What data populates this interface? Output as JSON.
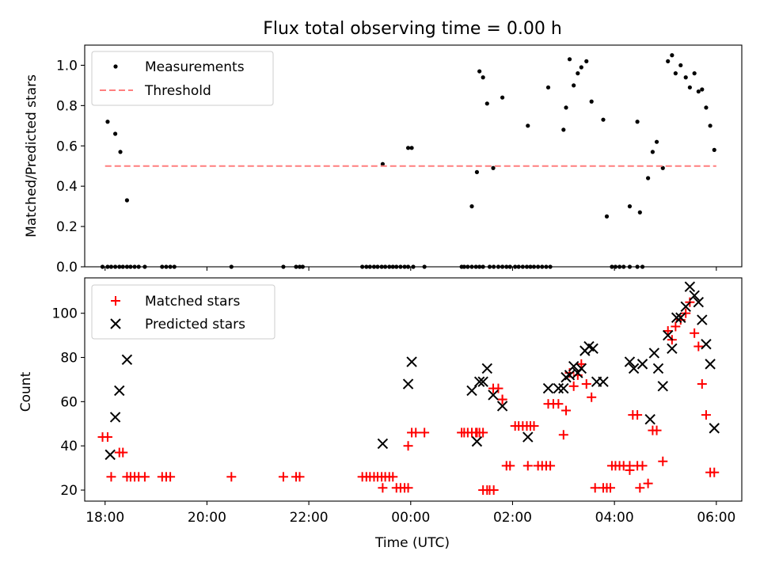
{
  "chart_data": [
    {
      "type": "scatter",
      "title": "Flux total observing time = 0.00 h",
      "xlabel": "",
      "ylabel": "Matched/Predicted stars",
      "xlim": [
        -0.4,
        12.5
      ],
      "ylim": [
        0,
        1.1
      ],
      "yticks": [
        0.0,
        0.2,
        0.4,
        0.6,
        0.8,
        1.0
      ],
      "ytick_labels": [
        "0.0",
        "0.2",
        "0.4",
        "0.6",
        "0.8",
        "1.0"
      ],
      "xtick_positions": [
        0,
        2,
        4,
        6,
        8,
        10,
        12
      ],
      "show_xtick_labels": false,
      "legend_position": "top-left",
      "grid": false,
      "series": [
        {
          "name": "Measurements",
          "marker": "dot",
          "color": "#000000",
          "x": [
            -0.05,
            0.05,
            0.12,
            0.2,
            0.28,
            0.35,
            0.43,
            0.5,
            0.58,
            0.66,
            0.78,
            1.12,
            1.2,
            1.28,
            1.36,
            2.48,
            3.5,
            3.75,
            3.82,
            3.88,
            5.05,
            5.13,
            5.2,
            5.28,
            5.35,
            5.43,
            5.5,
            5.58,
            5.65,
            5.72,
            5.8,
            5.88,
            5.95,
            6.05,
            6.27,
            7.0,
            7.05,
            7.12,
            7.2,
            7.28,
            7.35,
            7.42,
            7.55,
            7.63,
            7.72,
            7.8,
            7.88,
            7.95,
            8.05,
            8.12,
            8.2,
            8.28,
            8.35,
            8.42,
            8.5,
            8.58,
            8.66,
            8.74,
            9.95,
            10.02,
            10.1,
            10.18,
            10.3,
            10.45,
            10.55,
            0.05,
            0.2,
            0.3,
            0.43,
            5.45,
            5.95,
            6.02,
            7.2,
            7.3,
            7.35,
            7.42,
            7.5,
            7.62,
            7.8,
            8.3,
            8.7,
            9.0,
            9.05,
            9.12,
            9.2,
            9.28,
            9.35,
            9.45,
            9.55,
            9.78,
            9.85,
            10.3,
            10.45,
            10.5,
            10.66,
            10.75,
            10.83,
            10.95,
            11.05,
            11.13,
            11.2,
            11.3,
            11.4,
            11.48,
            11.57,
            11.65,
            11.72,
            11.8,
            11.88,
            11.96
          ],
          "y": [
            0,
            0,
            0,
            0,
            0,
            0,
            0,
            0,
            0,
            0,
            0,
            0,
            0,
            0,
            0,
            0,
            0,
            0,
            0,
            0,
            0,
            0,
            0,
            0,
            0,
            0,
            0,
            0,
            0,
            0,
            0,
            0,
            0,
            0,
            0,
            0,
            0,
            0,
            0,
            0,
            0,
            0,
            0,
            0,
            0,
            0,
            0,
            0,
            0,
            0,
            0,
            0,
            0,
            0,
            0,
            0,
            0,
            0,
            0,
            0,
            0,
            0,
            0,
            0,
            0,
            0.72,
            0.66,
            0.57,
            0.33,
            0.51,
            0.59,
            0.59,
            0.3,
            0.47,
            0.97,
            0.94,
            0.81,
            0.49,
            0.84,
            0.7,
            0.89,
            0.68,
            0.79,
            1.03,
            0.9,
            0.96,
            0.99,
            1.02,
            0.82,
            0.73,
            0.25,
            0.3,
            0.72,
            0.27,
            0.44,
            0.57,
            0.62,
            0.49,
            1.02,
            1.05,
            0.96,
            1.0,
            0.94,
            0.89,
            0.96,
            0.87,
            0.88,
            0.79,
            0.7,
            0.58
          ]
        },
        {
          "name": "Threshold",
          "marker": "dashed-line",
          "color": "#ff7f7f",
          "x": [
            0,
            12
          ],
          "y": [
            0.5,
            0.5
          ]
        }
      ]
    },
    {
      "type": "scatter",
      "title": "",
      "xlabel": "Time (UTC)",
      "ylabel": "Count",
      "xlim": [
        -0.4,
        12.5
      ],
      "ylim": [
        15,
        116
      ],
      "yticks": [
        20,
        40,
        60,
        80,
        100
      ],
      "ytick_labels": [
        "20",
        "40",
        "60",
        "80",
        "100"
      ],
      "xtick_positions": [
        0,
        2,
        4,
        6,
        8,
        10,
        12
      ],
      "xtick_labels": [
        "18:00",
        "20:00",
        "22:00",
        "00:00",
        "02:00",
        "04:00",
        "06:00"
      ],
      "legend_position": "top-left",
      "grid": false,
      "series": [
        {
          "name": "Matched stars",
          "marker": "plus",
          "color": "#ff0000",
          "x": [
            -0.05,
            0.05,
            0.12,
            0.28,
            0.35,
            0.43,
            0.5,
            0.58,
            0.66,
            0.78,
            1.12,
            1.2,
            1.28,
            2.48,
            3.5,
            3.75,
            3.82,
            5.05,
            5.13,
            5.2,
            5.28,
            5.35,
            5.43,
            5.5,
            5.58,
            5.65,
            5.72,
            5.8,
            5.88,
            5.95,
            7.0,
            7.05,
            7.12,
            7.2,
            7.28,
            7.42,
            7.55,
            7.63,
            7.72,
            7.8,
            7.88,
            7.95,
            8.05,
            8.12,
            8.2,
            8.28,
            8.35,
            8.42,
            8.5,
            8.58,
            8.66,
            8.74,
            9.95,
            10.02,
            10.1,
            10.18,
            10.3,
            10.45,
            10.55,
            5.45,
            5.95,
            6.02,
            6.1,
            6.27,
            7.2,
            7.3,
            7.35,
            7.42,
            7.5,
            7.62,
            7.8,
            8.3,
            8.7,
            8.8,
            8.9,
            9.0,
            9.05,
            9.12,
            9.2,
            9.28,
            9.35,
            9.45,
            9.55,
            9.62,
            9.78,
            9.85,
            9.92,
            10.3,
            10.36,
            10.45,
            10.5,
            10.66,
            10.75,
            10.83,
            10.95,
            11.05,
            11.13,
            11.2,
            11.3,
            11.4,
            11.48,
            11.57,
            11.65,
            11.72,
            11.8,
            11.88,
            11.96
          ],
          "y": [
            44,
            44,
            26,
            37,
            37,
            26,
            26,
            26,
            26,
            26,
            26,
            26,
            26,
            26,
            26,
            26,
            26,
            26,
            26,
            26,
            26,
            26,
            26,
            26,
            26,
            26,
            21,
            21,
            21,
            21,
            46,
            46,
            46,
            46,
            46,
            46,
            20,
            20,
            66,
            61,
            31,
            31,
            49,
            49,
            49,
            49,
            49,
            49,
            31,
            31,
            31,
            31,
            31,
            31,
            31,
            31,
            31,
            31,
            31,
            21,
            40,
            46,
            46,
            46,
            46,
            46,
            46,
            20,
            20,
            66,
            61,
            31,
            59,
            59,
            59,
            45,
            56,
            73,
            67,
            72,
            77,
            68,
            62,
            21,
            21,
            21,
            21,
            29,
            54,
            54,
            21,
            23,
            47,
            47,
            33,
            92,
            88,
            94,
            97,
            100,
            105,
            91,
            85,
            68,
            54,
            28,
            28
          ]
        },
        {
          "name": "Predicted stars",
          "marker": "x",
          "color": "#000000",
          "x": [
            0.1,
            0.2,
            0.28,
            0.43,
            5.45,
            5.95,
            6.02,
            7.2,
            7.3,
            7.35,
            7.42,
            7.5,
            7.62,
            7.8,
            8.3,
            8.7,
            8.9,
            9.0,
            9.05,
            9.12,
            9.2,
            9.28,
            9.35,
            9.42,
            9.5,
            9.58,
            9.65,
            9.78,
            10.3,
            10.38,
            10.55,
            10.7,
            10.78,
            10.86,
            10.95,
            11.05,
            11.13,
            11.22,
            11.3,
            11.4,
            11.48,
            11.57,
            11.65,
            11.72,
            11.8,
            11.88,
            11.96
          ],
          "y": [
            36,
            53,
            65,
            79,
            41,
            68,
            78,
            65,
            42,
            69,
            69,
            75,
            63,
            58,
            44,
            66,
            66,
            66,
            71,
            72,
            76,
            73,
            75,
            83,
            85,
            84,
            69,
            69,
            78,
            75,
            77,
            52,
            82,
            75,
            67,
            90,
            84,
            98,
            98,
            103,
            112,
            108,
            105,
            97,
            86,
            77,
            48
          ]
        }
      ]
    }
  ]
}
